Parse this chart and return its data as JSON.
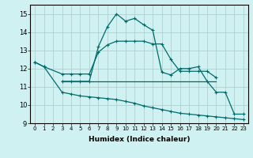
{
  "xlabel": "Humidex (Indice chaleur)",
  "xlim": [
    -0.5,
    23.5
  ],
  "ylim": [
    9,
    15.5
  ],
  "yticks": [
    9,
    10,
    11,
    12,
    13,
    14,
    15
  ],
  "xticks": [
    0,
    1,
    2,
    3,
    4,
    5,
    6,
    7,
    8,
    9,
    10,
    11,
    12,
    13,
    14,
    15,
    16,
    17,
    18,
    19,
    20,
    21,
    22,
    23
  ],
  "background_color": "#cff1f1",
  "grid_color": "#b0d0d0",
  "line_color": "#006b6b",
  "series": [
    {
      "x": [
        0,
        1,
        3,
        4,
        5,
        6,
        7,
        8,
        9,
        10,
        11,
        12,
        13,
        14,
        15,
        16,
        17,
        18,
        19,
        20
      ],
      "y": [
        12.35,
        12.1,
        11.7,
        11.7,
        11.7,
        11.7,
        12.9,
        13.3,
        13.5,
        13.5,
        13.5,
        13.5,
        13.35,
        13.35,
        12.5,
        11.85,
        11.85,
        11.85,
        11.85,
        11.5
      ]
    },
    {
      "x": [
        3,
        4,
        5,
        6,
        7,
        8,
        9,
        10,
        11,
        12,
        13,
        14,
        15,
        16,
        17,
        18,
        19,
        20,
        21,
        22,
        23
      ],
      "y": [
        11.3,
        11.3,
        11.3,
        11.3,
        13.2,
        14.3,
        15.0,
        14.6,
        14.75,
        14.4,
        14.1,
        11.8,
        11.65,
        12.0,
        12.0,
        12.1,
        11.3,
        10.7,
        10.7,
        9.5,
        9.5
      ]
    },
    {
      "x": [
        3,
        20
      ],
      "y": [
        11.3,
        11.3
      ]
    },
    {
      "x": [
        0,
        1,
        3,
        4,
        5,
        6,
        7,
        8,
        9,
        10,
        11,
        12,
        13,
        14,
        15,
        16,
        17,
        18,
        19,
        20,
        21,
        22,
        23
      ],
      "y": [
        12.35,
        12.1,
        10.7,
        10.6,
        10.5,
        10.45,
        10.4,
        10.35,
        10.3,
        10.2,
        10.1,
        9.95,
        9.85,
        9.75,
        9.65,
        9.55,
        9.5,
        9.45,
        9.4,
        9.35,
        9.3,
        9.25,
        9.2
      ]
    }
  ]
}
